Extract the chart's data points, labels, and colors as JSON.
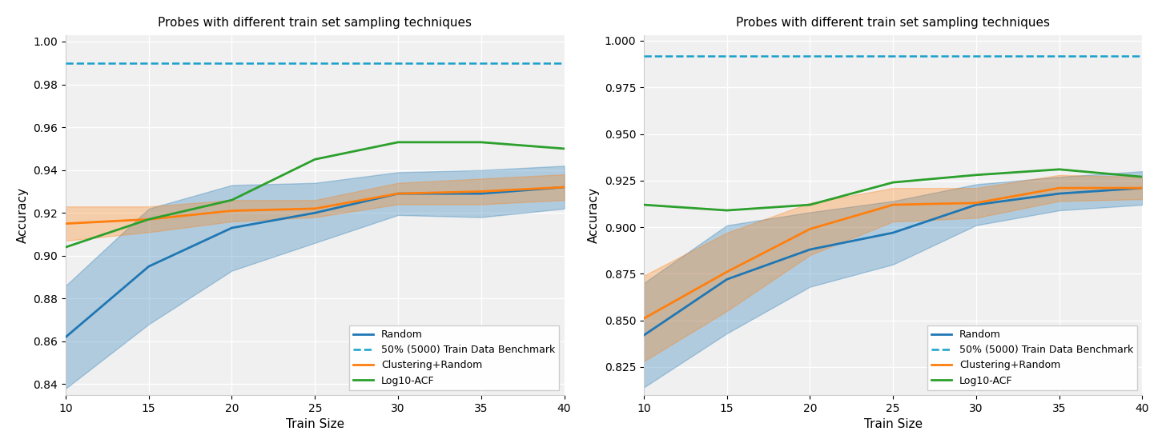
{
  "title": "Probes with different train set sampling techniques",
  "xlabel": "Train Size",
  "ylabel": "Accuracy",
  "x": [
    10,
    15,
    20,
    25,
    30,
    35,
    40
  ],
  "plot1": {
    "benchmark": 0.99,
    "random_mean": [
      0.862,
      0.895,
      0.913,
      0.92,
      0.929,
      0.929,
      0.932
    ],
    "random_low": [
      0.838,
      0.868,
      0.893,
      0.906,
      0.919,
      0.918,
      0.922
    ],
    "random_high": [
      0.886,
      0.922,
      0.933,
      0.934,
      0.939,
      0.94,
      0.942
    ],
    "cluster_mean": [
      0.915,
      0.917,
      0.921,
      0.922,
      0.929,
      0.93,
      0.932
    ],
    "cluster_low": [
      0.907,
      0.911,
      0.916,
      0.918,
      0.924,
      0.924,
      0.926
    ],
    "cluster_high": [
      0.923,
      0.923,
      0.926,
      0.926,
      0.934,
      0.936,
      0.938
    ],
    "acf_mean": [
      0.904,
      0.917,
      0.926,
      0.945,
      0.953,
      0.953,
      0.95
    ],
    "ylim": [
      0.835,
      1.003
    ],
    "yticks": [
      0.84,
      0.86,
      0.88,
      0.9,
      0.92,
      0.94,
      0.96,
      0.98,
      1.0
    ]
  },
  "plot2": {
    "benchmark": 0.992,
    "random_mean": [
      0.842,
      0.872,
      0.888,
      0.897,
      0.912,
      0.918,
      0.921
    ],
    "random_low": [
      0.814,
      0.843,
      0.868,
      0.88,
      0.901,
      0.909,
      0.912
    ],
    "random_high": [
      0.87,
      0.901,
      0.908,
      0.914,
      0.923,
      0.927,
      0.93
    ],
    "cluster_mean": [
      0.851,
      0.876,
      0.899,
      0.912,
      0.913,
      0.921,
      0.921
    ],
    "cluster_low": [
      0.828,
      0.855,
      0.885,
      0.903,
      0.905,
      0.914,
      0.915
    ],
    "cluster_high": [
      0.874,
      0.897,
      0.913,
      0.921,
      0.921,
      0.928,
      0.927
    ],
    "acf_mean": [
      0.912,
      0.909,
      0.912,
      0.924,
      0.928,
      0.931,
      0.927
    ],
    "ylim": [
      0.81,
      1.003
    ],
    "yticks": [
      0.825,
      0.85,
      0.875,
      0.9,
      0.925,
      0.95,
      0.975,
      1.0
    ]
  },
  "colors": {
    "random": "#1f77b4",
    "benchmark": "#17a0cb",
    "cluster": "#ff7f0e",
    "acf": "#2ca02c"
  },
  "legend_labels": [
    "Random",
    "50% (5000) Train Data Benchmark",
    "Clustering+Random",
    "Log10-ACF"
  ],
  "bg_color": "#f0f0f0",
  "grid_color": "white"
}
